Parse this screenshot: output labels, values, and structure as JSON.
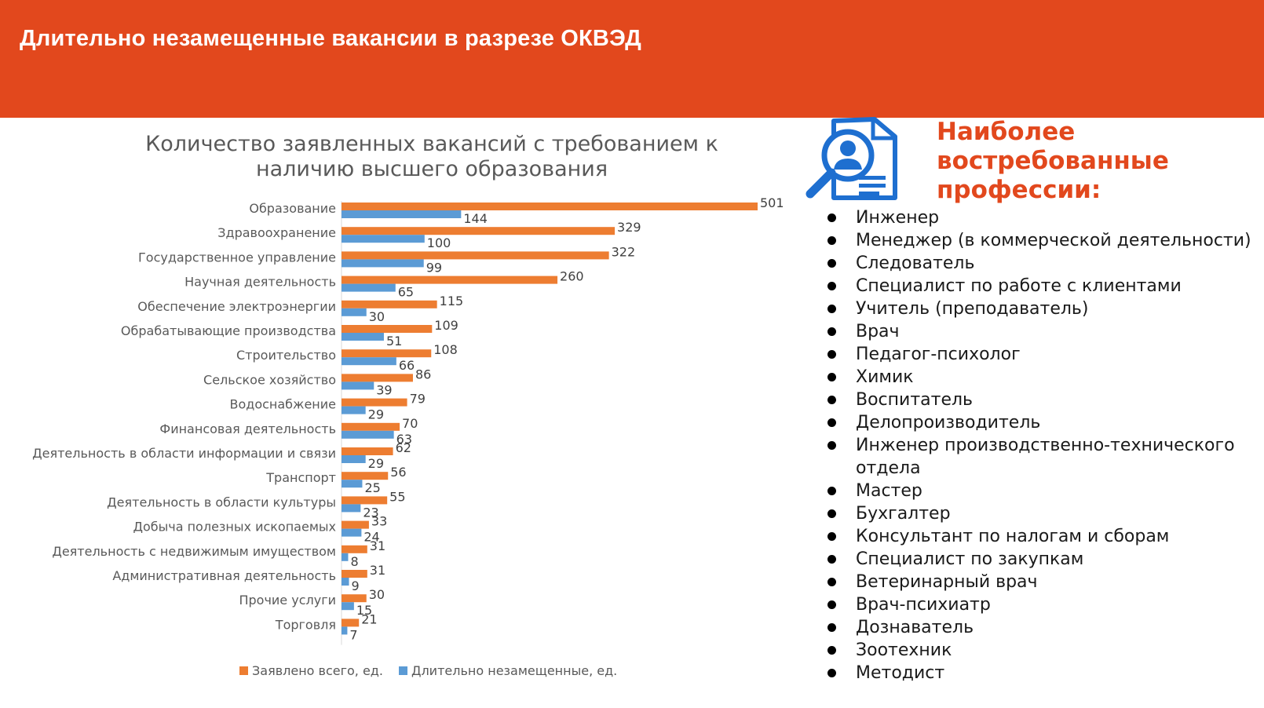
{
  "header": {
    "title": "Длительно незамещенные вакансии в разрезе ОКВЭД"
  },
  "colors": {
    "accent": "#E2481D",
    "series_total": "#ED7D31",
    "series_long": "#5B9BD5"
  },
  "chart_data": {
    "type": "bar",
    "orientation": "horizontal",
    "title": "Количество заявленных вакансий с требованием к наличию высшего образования",
    "categories": [
      "Образование",
      "Здравоохранение",
      "Государственное управление",
      "Научная деятельность",
      "Обеспечение электроэнергии",
      "Обрабатывающие производства",
      "Строительство",
      "Сельское хозяйство",
      "Водоснабжение",
      "Финансовая деятельность",
      "Деятельность в области информации и связи",
      "Транспорт",
      "Деятельность в области культуры",
      "Добыча полезных ископаемых",
      "Деятельность с недвижимым имуществом",
      "Административная деятельность",
      "Прочие услуги",
      "Торговля"
    ],
    "series": [
      {
        "name": "Заявлено всего, ед.",
        "color": "#ED7D31",
        "values": [
          501,
          329,
          322,
          260,
          115,
          109,
          108,
          86,
          79,
          70,
          62,
          56,
          55,
          33,
          31,
          31,
          30,
          21
        ]
      },
      {
        "name": "Длительно незамещенные, ед.",
        "color": "#5B9BD5",
        "values": [
          144,
          100,
          99,
          65,
          30,
          51,
          66,
          39,
          29,
          63,
          29,
          25,
          23,
          24,
          8,
          9,
          15,
          7
        ]
      }
    ],
    "xlim": [
      0,
      501
    ],
    "legend_position": "bottom",
    "grid": false
  },
  "sidebar": {
    "icon": "document-search-icon",
    "title": "Наиболее востребованные профессии:",
    "professions": [
      "Инженер",
      "Менеджер (в коммерческой деятельности)",
      "Следователь",
      "Специалист по работе с клиентами",
      "Учитель (преподаватель)",
      "Врач",
      "Педагог-психолог",
      "Химик",
      "Воспитатель",
      "Делопроизводитель",
      "Инженер производственно-технического отдела",
      "Мастер",
      "Бухгалтер",
      "Консультант по налогам и сборам",
      "Специалист по закупкам",
      "Ветеринарный врач",
      "Врач-психиатр",
      "Дознаватель",
      "Зоотехник",
      "Методист"
    ]
  }
}
